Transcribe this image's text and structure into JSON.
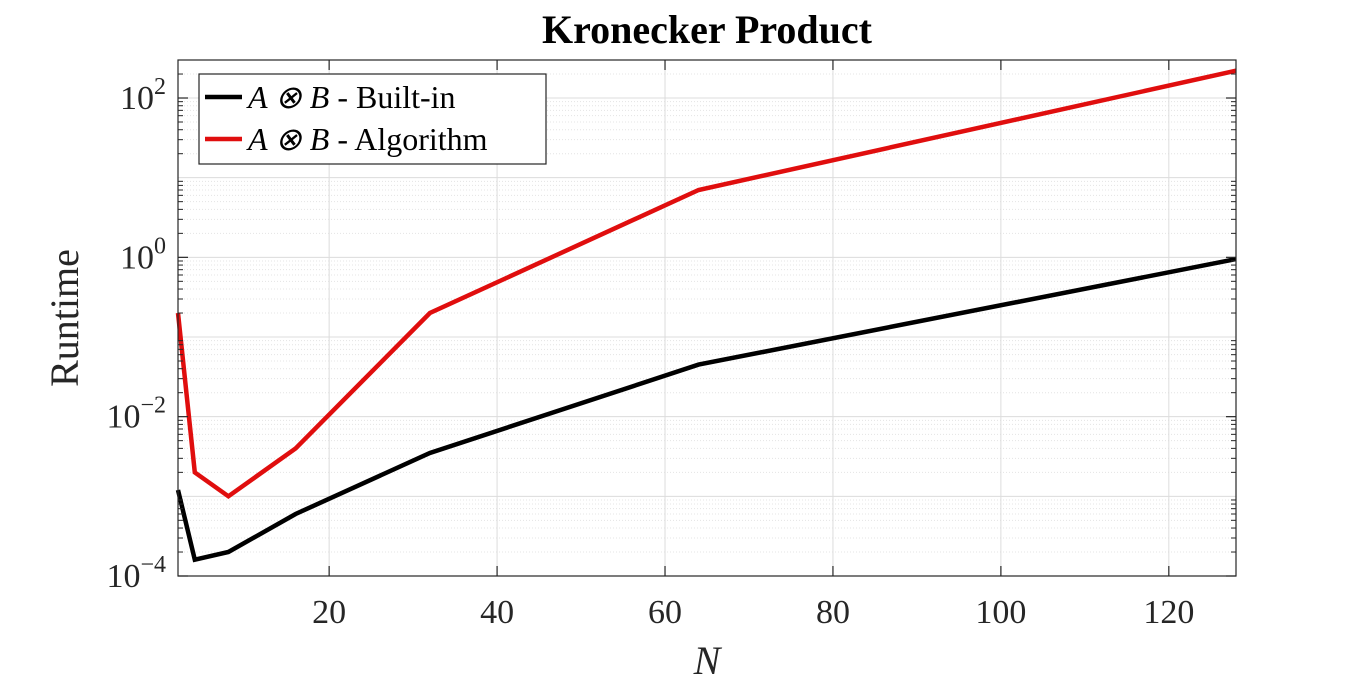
{
  "chart_data": {
    "type": "line",
    "title": "Kronecker Product",
    "xlabel": "N",
    "ylabel": "Runtime",
    "xscale": "linear",
    "yscale": "log",
    "xlim": [
      2,
      128
    ],
    "ylim": [
      0.0001,
      300
    ],
    "xticks": [
      20,
      40,
      60,
      80,
      100,
      120
    ],
    "yticks": [
      {
        "value": 0.0001,
        "base": "10",
        "exp": "−4"
      },
      {
        "value": 0.01,
        "base": "10",
        "exp": "−2"
      },
      {
        "value": 1,
        "base": "10",
        "exp": "0"
      },
      {
        "value": 100,
        "base": "10",
        "exp": "2"
      }
    ],
    "grid": true,
    "minor_grid": true,
    "legend_position": "top-left",
    "series": [
      {
        "name": "A ⊗ B - Built-in",
        "legend_math": "A ⊗ B",
        "legend_text": " - Built-in",
        "color": "#000000",
        "x": [
          2,
          4,
          8,
          16,
          32,
          64,
          128
        ],
        "y": [
          0.0012,
          0.00016,
          0.0002,
          0.0006,
          0.0035,
          0.045,
          0.95
        ]
      },
      {
        "name": "A ⊗ B - Algorithm",
        "legend_math": "A ⊗ B",
        "legend_text": " - Algorithm",
        "color": "#e00e0e",
        "x": [
          2,
          4,
          8,
          16,
          32,
          64,
          128
        ],
        "y": [
          0.2,
          0.002,
          0.001,
          0.004,
          0.2,
          7,
          220
        ]
      }
    ]
  }
}
